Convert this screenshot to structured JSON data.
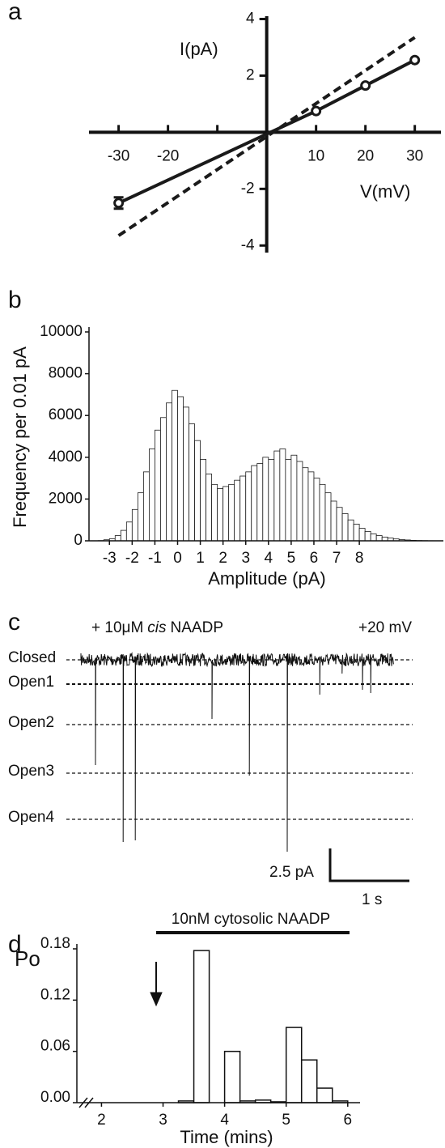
{
  "chart_data": [
    {
      "type": "line",
      "panel_label": "a",
      "y_label": "I(pA)",
      "x_label": "V(mV)",
      "xlim": [
        -36,
        35.3
      ],
      "ylim": [
        -4.25,
        4.1
      ],
      "xticks": [
        -30,
        -20,
        10,
        20,
        30
      ],
      "minor_xticks": [
        -10
      ],
      "yticks": [
        -4,
        -2,
        2,
        4
      ],
      "series": [
        {
          "color": "#1a1a1a",
          "style": "solid",
          "marker": "circle",
          "x": [
            -30,
            10,
            20,
            30
          ],
          "values": [
            -2.5,
            0.75,
            1.65,
            2.55
          ],
          "errors": [
            0.2,
            null,
            null,
            null
          ]
        },
        {
          "color": "#1a1a1a",
          "style": "dashed",
          "x": [
            -30,
            30
          ],
          "values": [
            -3.65,
            3.35
          ]
        }
      ]
    },
    {
      "type": "histogram",
      "panel_label": "b",
      "y_label": "Frequency per 0.01 pA",
      "x_label": "Amplitude (pA)",
      "xlim": [
        -3.9,
        11.7
      ],
      "ylim": [
        0,
        10000
      ],
      "xticks": [
        -3,
        -2,
        -1,
        0,
        1,
        2,
        3,
        4,
        5,
        6,
        7,
        8
      ],
      "yticks": [
        0,
        2000,
        4000,
        6000,
        8000,
        10000
      ],
      "color": "#1a1a1a",
      "bins": [
        -4,
        -3.75,
        -3.5,
        -3.25,
        -3,
        -2.75,
        -2.5,
        -2.25,
        -2,
        -1.75,
        -1.5,
        -1.25,
        -1,
        -0.75,
        -0.5,
        -0.25,
        0,
        0.25,
        0.5,
        0.75,
        1,
        1.25,
        1.5,
        1.75,
        2,
        2.25,
        2.5,
        2.75,
        3,
        3.25,
        3.5,
        3.75,
        4,
        4.25,
        4.5,
        4.75,
        5,
        5.25,
        5.5,
        5.75,
        6,
        6.25,
        6.5,
        6.75,
        7,
        7.25,
        7.5,
        7.75,
        8,
        8.25,
        8.5,
        8.75,
        9,
        9.25,
        9.5,
        9.75,
        10,
        10.25,
        10.5,
        10.75,
        11,
        11.25,
        11.5
      ],
      "values": [
        0,
        0,
        10,
        50,
        100,
        250,
        500,
        900,
        1500,
        2300,
        3300,
        4400,
        5300,
        5900,
        6600,
        7200,
        6900,
        6400,
        5600,
        4800,
        3900,
        3200,
        2700,
        2500,
        2600,
        2700,
        2900,
        3100,
        3300,
        3600,
        3700,
        4000,
        3900,
        4300,
        4400,
        3900,
        4100,
        3800,
        3500,
        3300,
        3000,
        2700,
        2300,
        1900,
        1600,
        1300,
        1000,
        800,
        600,
        450,
        330,
        250,
        180,
        130,
        90,
        60,
        40,
        25,
        15,
        10,
        5,
        3
      ]
    },
    {
      "type": "trace",
      "panel_label": "c",
      "annotation": {
        "prefix": "+ 10μM",
        "italic": "cis",
        "suffix": "NAADP"
      },
      "voltage": "+20 mV",
      "levels": [
        "Closed",
        "Open1",
        "Open2",
        "Open3",
        "Open4"
      ],
      "scale_y": "2.5 pA",
      "scale_x": "1 s"
    },
    {
      "type": "histogram",
      "panel_label": "d",
      "y_label": "Po",
      "x_label": "Time (mins)",
      "annotation": "10nM cytosolic NAADP",
      "xlim": [
        1.6,
        6.2
      ],
      "ylim": [
        0,
        0.18
      ],
      "xticks": [
        2,
        3,
        4,
        5,
        6
      ],
      "yticks": [
        {
          "value": 0,
          "label": "0.00"
        },
        0.06,
        0.12,
        0.18
      ],
      "color": "#ffffff",
      "bins": [
        3,
        3.25,
        3.5,
        3.75,
        4,
        4.25,
        4.5,
        4.75,
        5,
        5.25,
        5.5,
        5.75,
        6
      ],
      "values": [
        0,
        0.002,
        0.178,
        0,
        0.06,
        0.002,
        0.003,
        0.001,
        0.088,
        0.05,
        0.017,
        0.002
      ]
    }
  ]
}
